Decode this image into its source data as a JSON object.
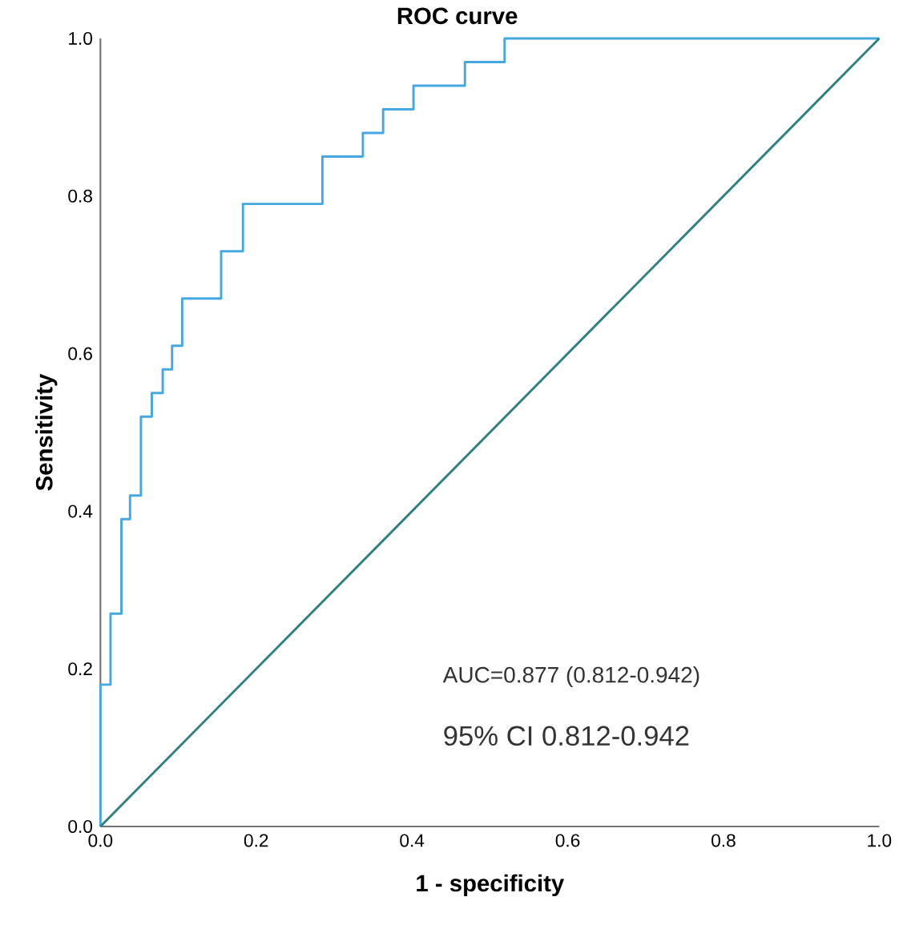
{
  "chart_data": {
    "type": "line",
    "title": "ROC curve",
    "xlabel": "1 - specificity",
    "ylabel": "Sensitivity",
    "xlim": [
      0,
      1
    ],
    "ylim": [
      0,
      1
    ],
    "xticks": [
      {
        "value": 0,
        "label": "0.0"
      },
      0.2,
      0.4,
      0.6,
      0.8,
      {
        "value": 1,
        "label": "1.0"
      }
    ],
    "yticks": [
      {
        "value": 0,
        "label": "0.0"
      },
      0.2,
      0.4,
      0.6,
      0.8,
      {
        "value": 1,
        "label": "1.0"
      }
    ],
    "series": [
      {
        "type": "step",
        "color": "#45a8e0",
        "x": [
          0,
          0,
          0.013,
          0.027,
          0.038,
          0.052,
          0.066,
          0.08,
          0.092,
          0.105,
          0.155,
          0.183,
          0.285,
          0.337,
          0.363,
          0.402,
          0.468,
          0.519,
          1
        ],
        "values": [
          0,
          0.18,
          0.27,
          0.39,
          0.42,
          0.52,
          0.55,
          0.58,
          0.61,
          0.67,
          0.73,
          0.79,
          0.85,
          0.88,
          0.91,
          0.94,
          0.97,
          1.0,
          1.0
        ]
      },
      {
        "color": "#2f8080",
        "x": [
          0,
          1
        ],
        "values": [
          0,
          1
        ]
      }
    ],
    "annotations": [
      "AUC=0.877 (0.812-0.942)",
      "95% CI 0.812-0.942"
    ]
  }
}
